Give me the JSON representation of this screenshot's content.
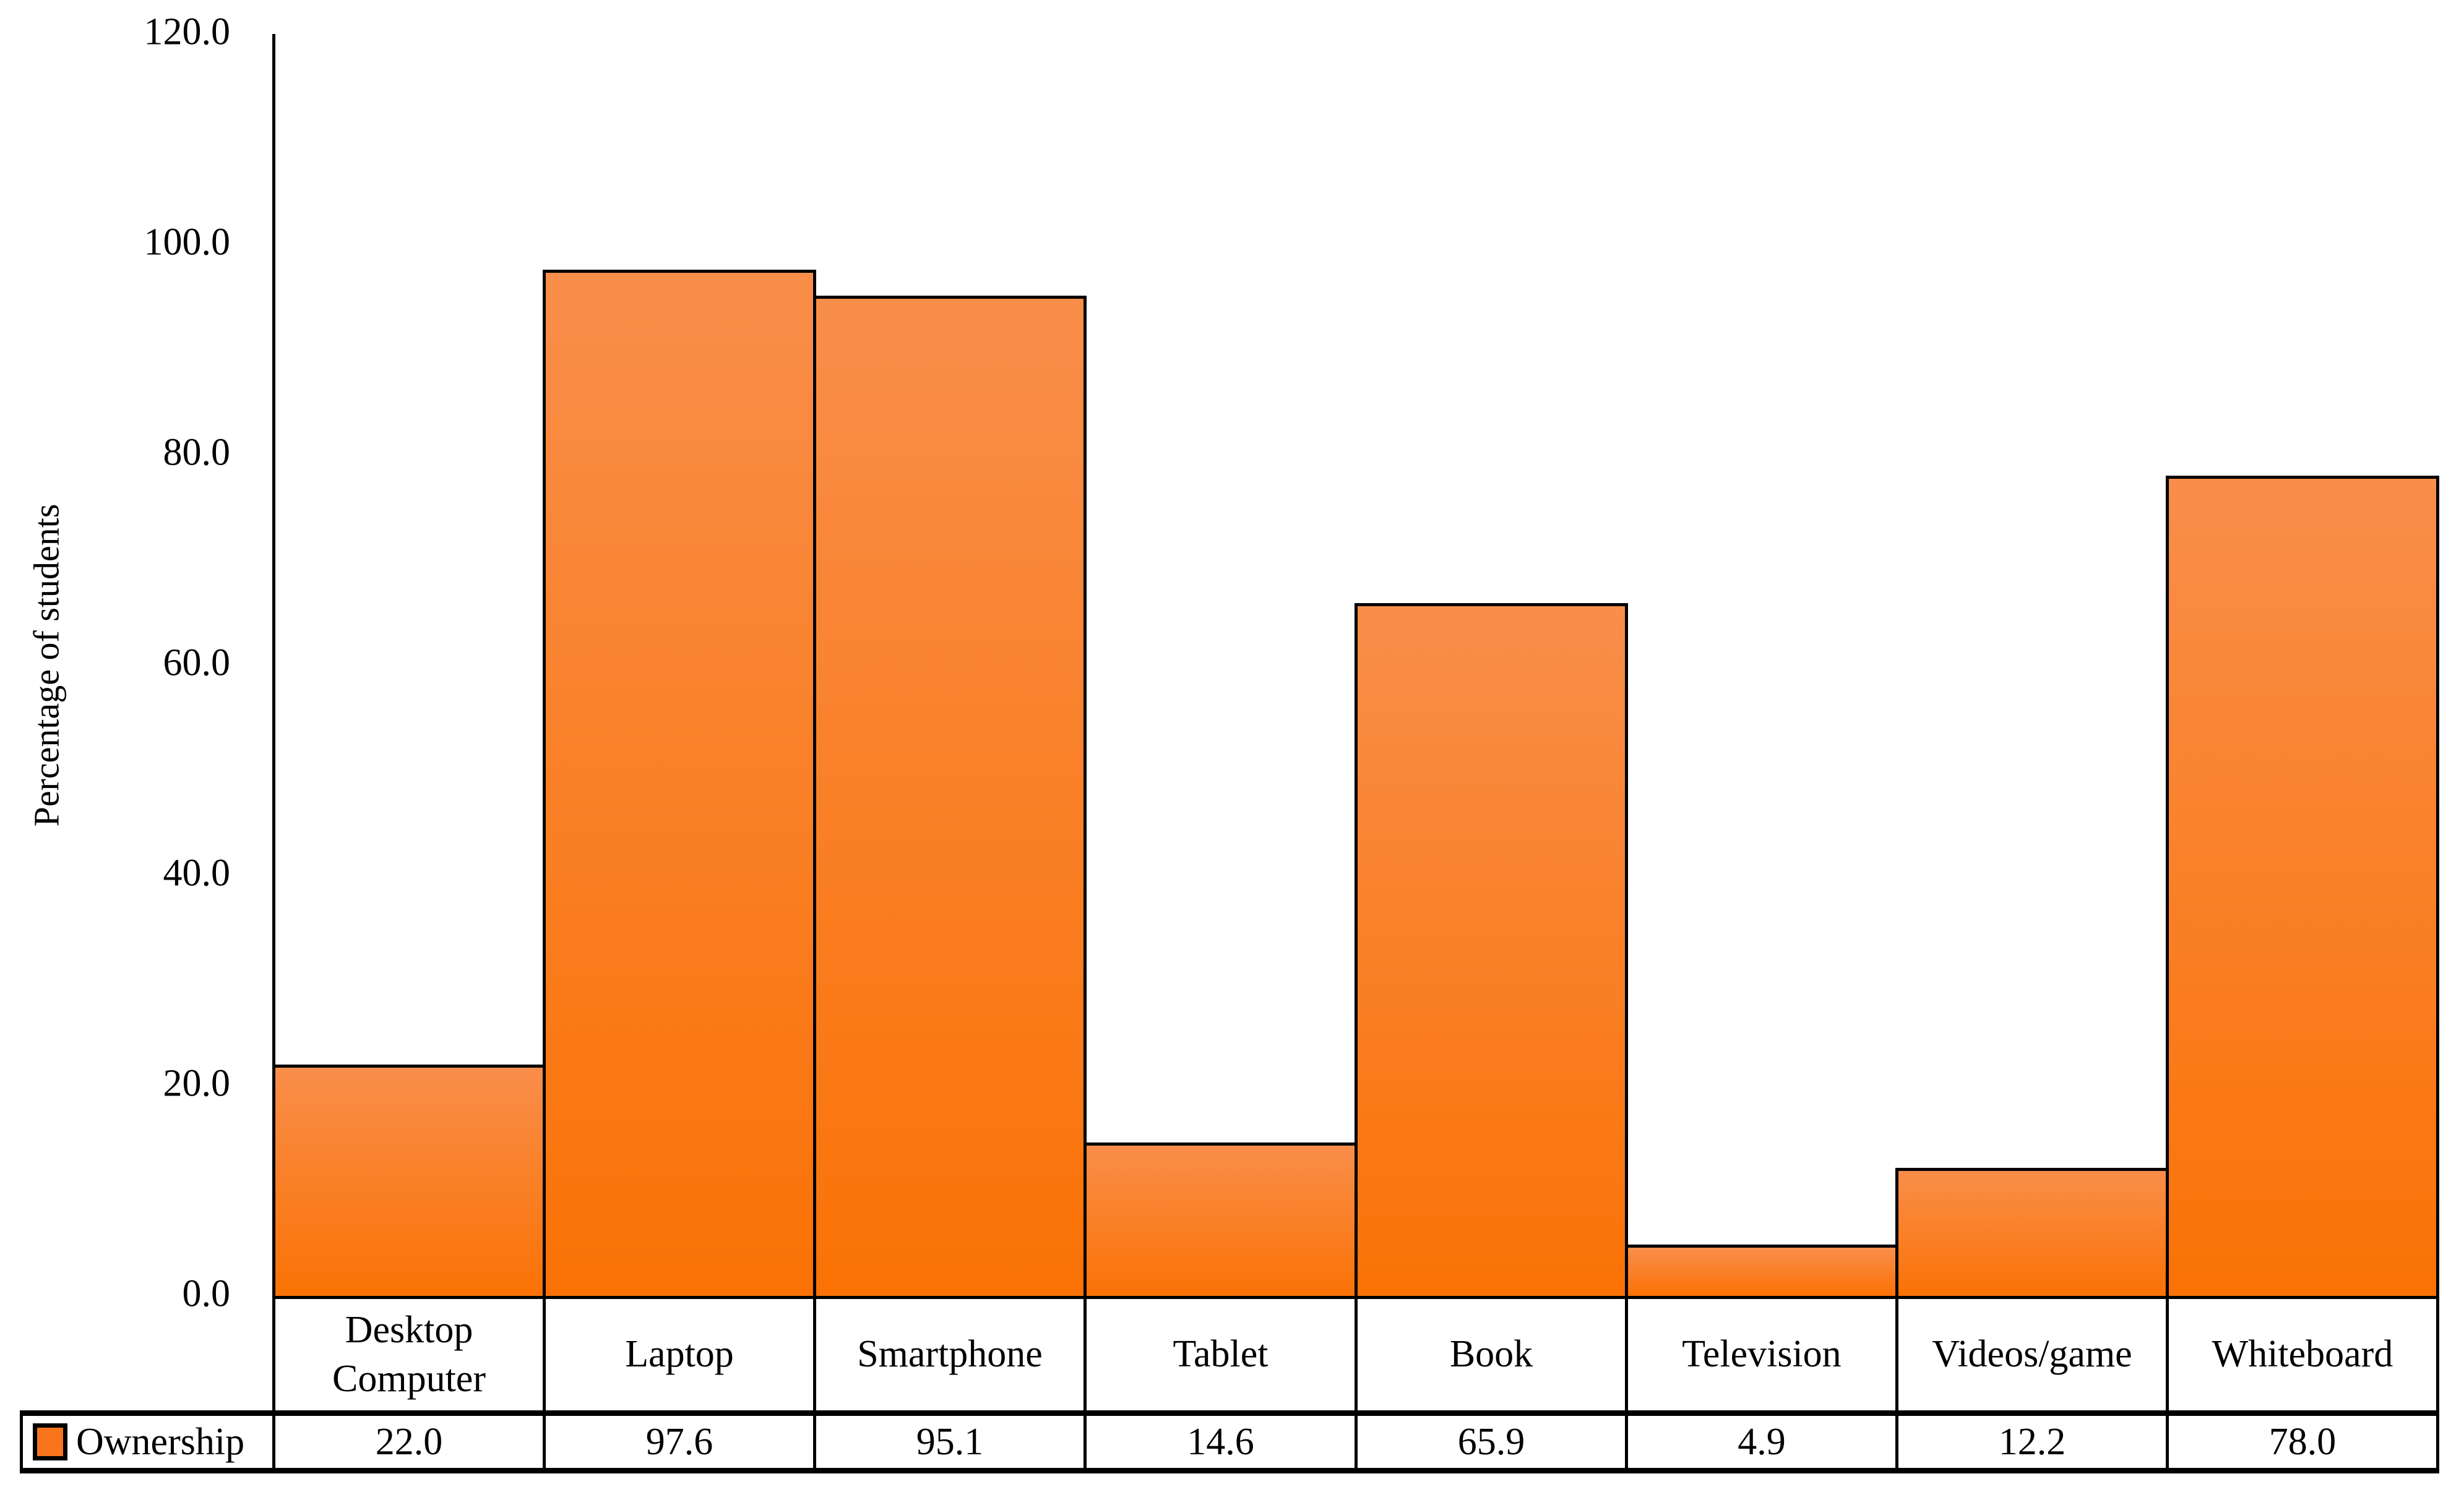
{
  "chart_data": {
    "type": "bar",
    "title": "",
    "xlabel": "",
    "ylabel": "Percentage of students",
    "ylim": [
      0,
      120
    ],
    "grid": false,
    "legend_position": "bottom-table-left",
    "yticks": [
      {
        "value": 0,
        "label": "0.0"
      },
      {
        "value": 20,
        "label": "20.0"
      },
      {
        "value": 40,
        "label": "40.0"
      },
      {
        "value": 60,
        "label": "60.0"
      },
      {
        "value": 80,
        "label": "80.0"
      },
      {
        "value": 100,
        "label": "100.0"
      },
      {
        "value": 120,
        "label": "120.0"
      }
    ],
    "categories": [
      "Desktop Computer",
      "Laptop",
      "Smartphone",
      "Tablet",
      "Book",
      "Television",
      "Videos/game",
      "Whiteboard"
    ],
    "series": [
      {
        "name": "Ownership",
        "values": [
          22.0,
          97.6,
          95.1,
          14.6,
          65.9,
          4.9,
          12.2,
          78.0
        ],
        "value_labels": [
          "22.0",
          "97.6",
          "95.1",
          "14.6",
          "65.9",
          "4.9",
          "12.2",
          "78.0"
        ]
      }
    ]
  },
  "legend": {
    "label": "Ownership"
  },
  "colors": {
    "bar_gradient_top": "#F98E4A",
    "bar_gradient_bottom": "#FA7205",
    "bar_border": "#000000",
    "legend_swatch": "#F9751B",
    "axis": "#000000",
    "background": "#FFFFFF"
  }
}
